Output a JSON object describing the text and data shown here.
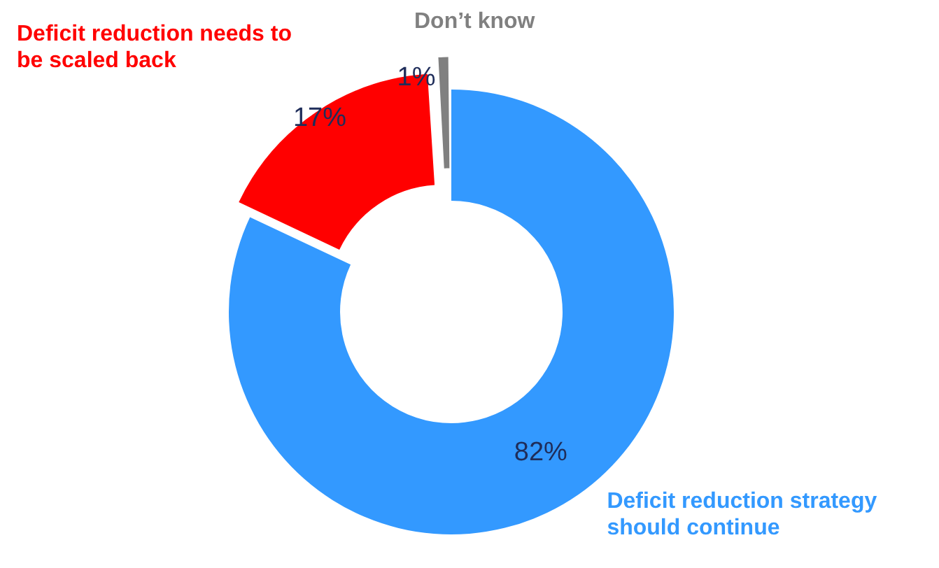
{
  "chart_data": {
    "type": "donut",
    "categories": [
      "Deficit reduction strategy should continue",
      "Deficit reduction needs to be scaled back",
      "Don’t know"
    ],
    "values": [
      82,
      17,
      1
    ],
    "colors": [
      "#3399ff",
      "#ff0000",
      "#808080"
    ],
    "value_labels": [
      "82%",
      "17%",
      "1%"
    ],
    "legend": false
  }
}
